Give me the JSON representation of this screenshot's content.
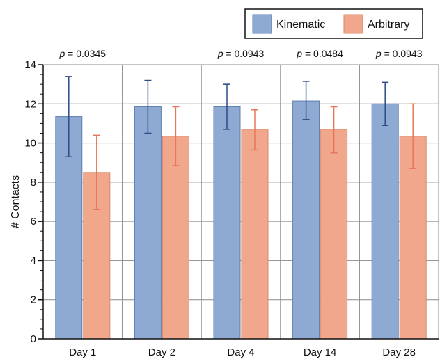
{
  "chart_data": {
    "type": "bar",
    "categories": [
      "Day 1",
      "Day 2",
      "Day 4",
      "Day 14",
      "Day 28"
    ],
    "series": [
      {
        "name": "Kinematic",
        "values": [
          11.35,
          11.85,
          11.85,
          12.15,
          12.0
        ],
        "error_low": [
          9.3,
          10.5,
          10.7,
          11.2,
          10.9
        ],
        "error_high": [
          13.4,
          13.2,
          13.0,
          13.15,
          13.1
        ]
      },
      {
        "name": "Arbitrary",
        "values": [
          8.5,
          10.35,
          10.7,
          10.7,
          10.35
        ],
        "error_low": [
          6.6,
          8.85,
          9.65,
          9.5,
          8.7
        ],
        "error_high": [
          10.4,
          11.85,
          11.7,
          11.85,
          12.0
        ]
      }
    ],
    "annotations": [
      "p = 0.0345",
      "",
      "p = 0.0943",
      "p = 0.0484",
      "p = 0.0943"
    ],
    "xlabel": "",
    "ylabel": "# Contacts",
    "ylim": [
      0,
      14
    ],
    "yticks": [
      0,
      2,
      4,
      6,
      8,
      10,
      12,
      14
    ],
    "grid": true,
    "legend_position": "top-right",
    "colors": {
      "Kinematic": "#8eaad2",
      "Arbitrary": "#f0a78c",
      "Kinematic_error": "#2e4a86",
      "Arbitrary_error": "#e8765a",
      "grid": "#8a8a8a",
      "axis": "#111111"
    }
  }
}
